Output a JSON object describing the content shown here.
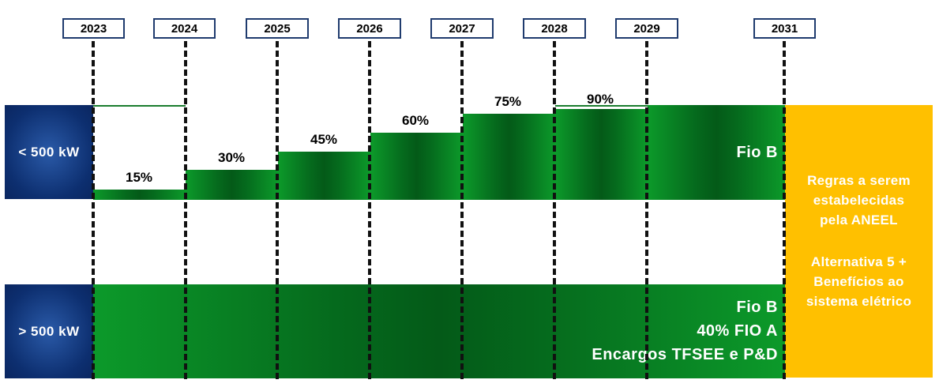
{
  "years": [
    "2023",
    "2024",
    "2025",
    "2026",
    "2027",
    "2028",
    "2029",
    "2031"
  ],
  "rows": {
    "small_label": "< 500 kW",
    "large_label": "> 500 kW"
  },
  "steps": [
    {
      "year": "2023",
      "percent": "15%"
    },
    {
      "year": "2024",
      "percent": "30%"
    },
    {
      "year": "2025",
      "percent": "45%"
    },
    {
      "year": "2026",
      "percent": "60%"
    },
    {
      "year": "2027",
      "percent": "75%"
    },
    {
      "year": "2028",
      "percent": "90%"
    }
  ],
  "small_component": "Fio B",
  "large_components": [
    "Fio B",
    "40% FIO A",
    "Encargos TFSEE e P&D"
  ],
  "rules_text": [
    "Regras a serem",
    "estabelecidas",
    "pela ANEEL"
  ],
  "alternative_text": [
    "Alternativa 5 +",
    "Benefícios ao",
    "sistema elétrico"
  ],
  "colors": {
    "navy": "#0d2f70",
    "green": "#0a7a22",
    "yellow": "#ffc000"
  }
}
